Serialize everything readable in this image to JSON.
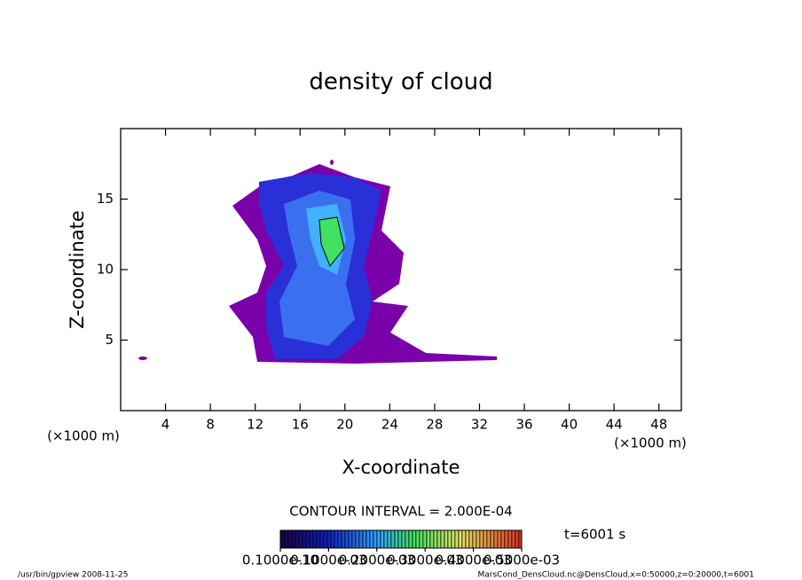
{
  "chart_data": {
    "type": "contour",
    "title": "density of cloud",
    "x_label": "X-coordinate",
    "y_label": "Z-coordinate",
    "x_unit": "(×1000 m)",
    "y_unit": "(×1000 m)",
    "xlim": [
      0,
      50
    ],
    "xticks": [
      4,
      8,
      12,
      16,
      20,
      24,
      28,
      32,
      36,
      40,
      44,
      48
    ],
    "ylim": [
      0,
      20
    ],
    "yticks": [
      5,
      10,
      15
    ],
    "contour_interval": "CONTOUR INTERVAL = 2.000E-04",
    "time_label": "t=6001 s",
    "colorbar": {
      "clim": [
        1e-11,
        0.0005
      ],
      "ticks": [
        {
          "value": 1e-11,
          "label": "0.1000e-10"
        },
        {
          "value": 0.0001,
          "label": "0.1000e-03"
        },
        {
          "value": 0.0002,
          "label": "0.2000e-03"
        },
        {
          "value": 0.0003,
          "label": "0.3000e-03"
        },
        {
          "value": 0.0004,
          "label": "0.4000e-03"
        },
        {
          "value": 0.0005,
          "label": "0.5000e-03"
        }
      ]
    },
    "footer_left": "/usr/bin/gpview  2008-11-25",
    "footer_right": "MarsCond_DensCloud.nc@DensCloud,x=0:50000,z=0:20000,t=6001"
  }
}
